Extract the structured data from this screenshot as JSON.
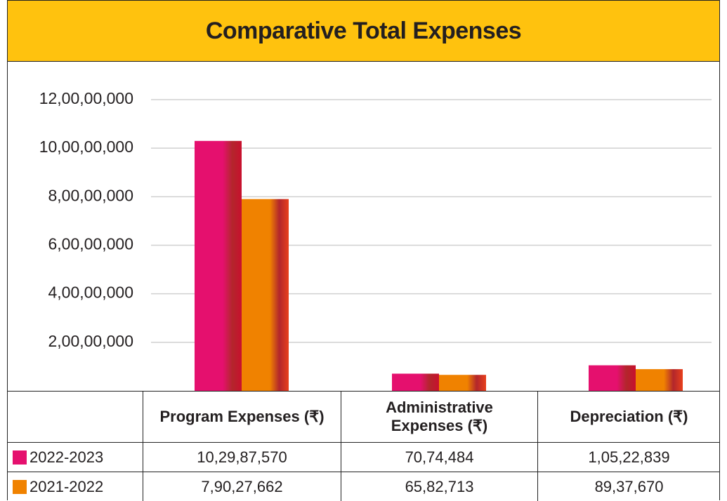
{
  "chart_data": {
    "type": "bar",
    "title": "Comparative Total Expenses",
    "categories": [
      "Program Expenses (₹)",
      "Administrative Expenses (₹)",
      "Depreciation (₹)"
    ],
    "series": [
      {
        "name": "2022-2023",
        "color": "#e5106e",
        "values": [
          102987570,
          7074484,
          10522839
        ],
        "value_labels": [
          "10,29,87,570",
          "70,74,484",
          "1,05,22,839"
        ]
      },
      {
        "name": "2021-2022",
        "color": "#f08200",
        "values": [
          79027662,
          6582713,
          8937670
        ],
        "value_labels": [
          "7,90,27,662",
          "65,82,713",
          "89,37,670"
        ]
      }
    ],
    "ylim": [
      0,
      120000000
    ],
    "yticks": [
      {
        "value": 20000000,
        "label": "2,00,00,000"
      },
      {
        "value": 40000000,
        "label": "4,00,00,000"
      },
      {
        "value": 60000000,
        "label": "6,00,00,000"
      },
      {
        "value": 80000000,
        "label": "8,00,00,000"
      },
      {
        "value": 100000000,
        "label": "10,00,00,000"
      },
      {
        "value": 120000000,
        "label": "12,00,00,000"
      }
    ],
    "grid": true
  }
}
